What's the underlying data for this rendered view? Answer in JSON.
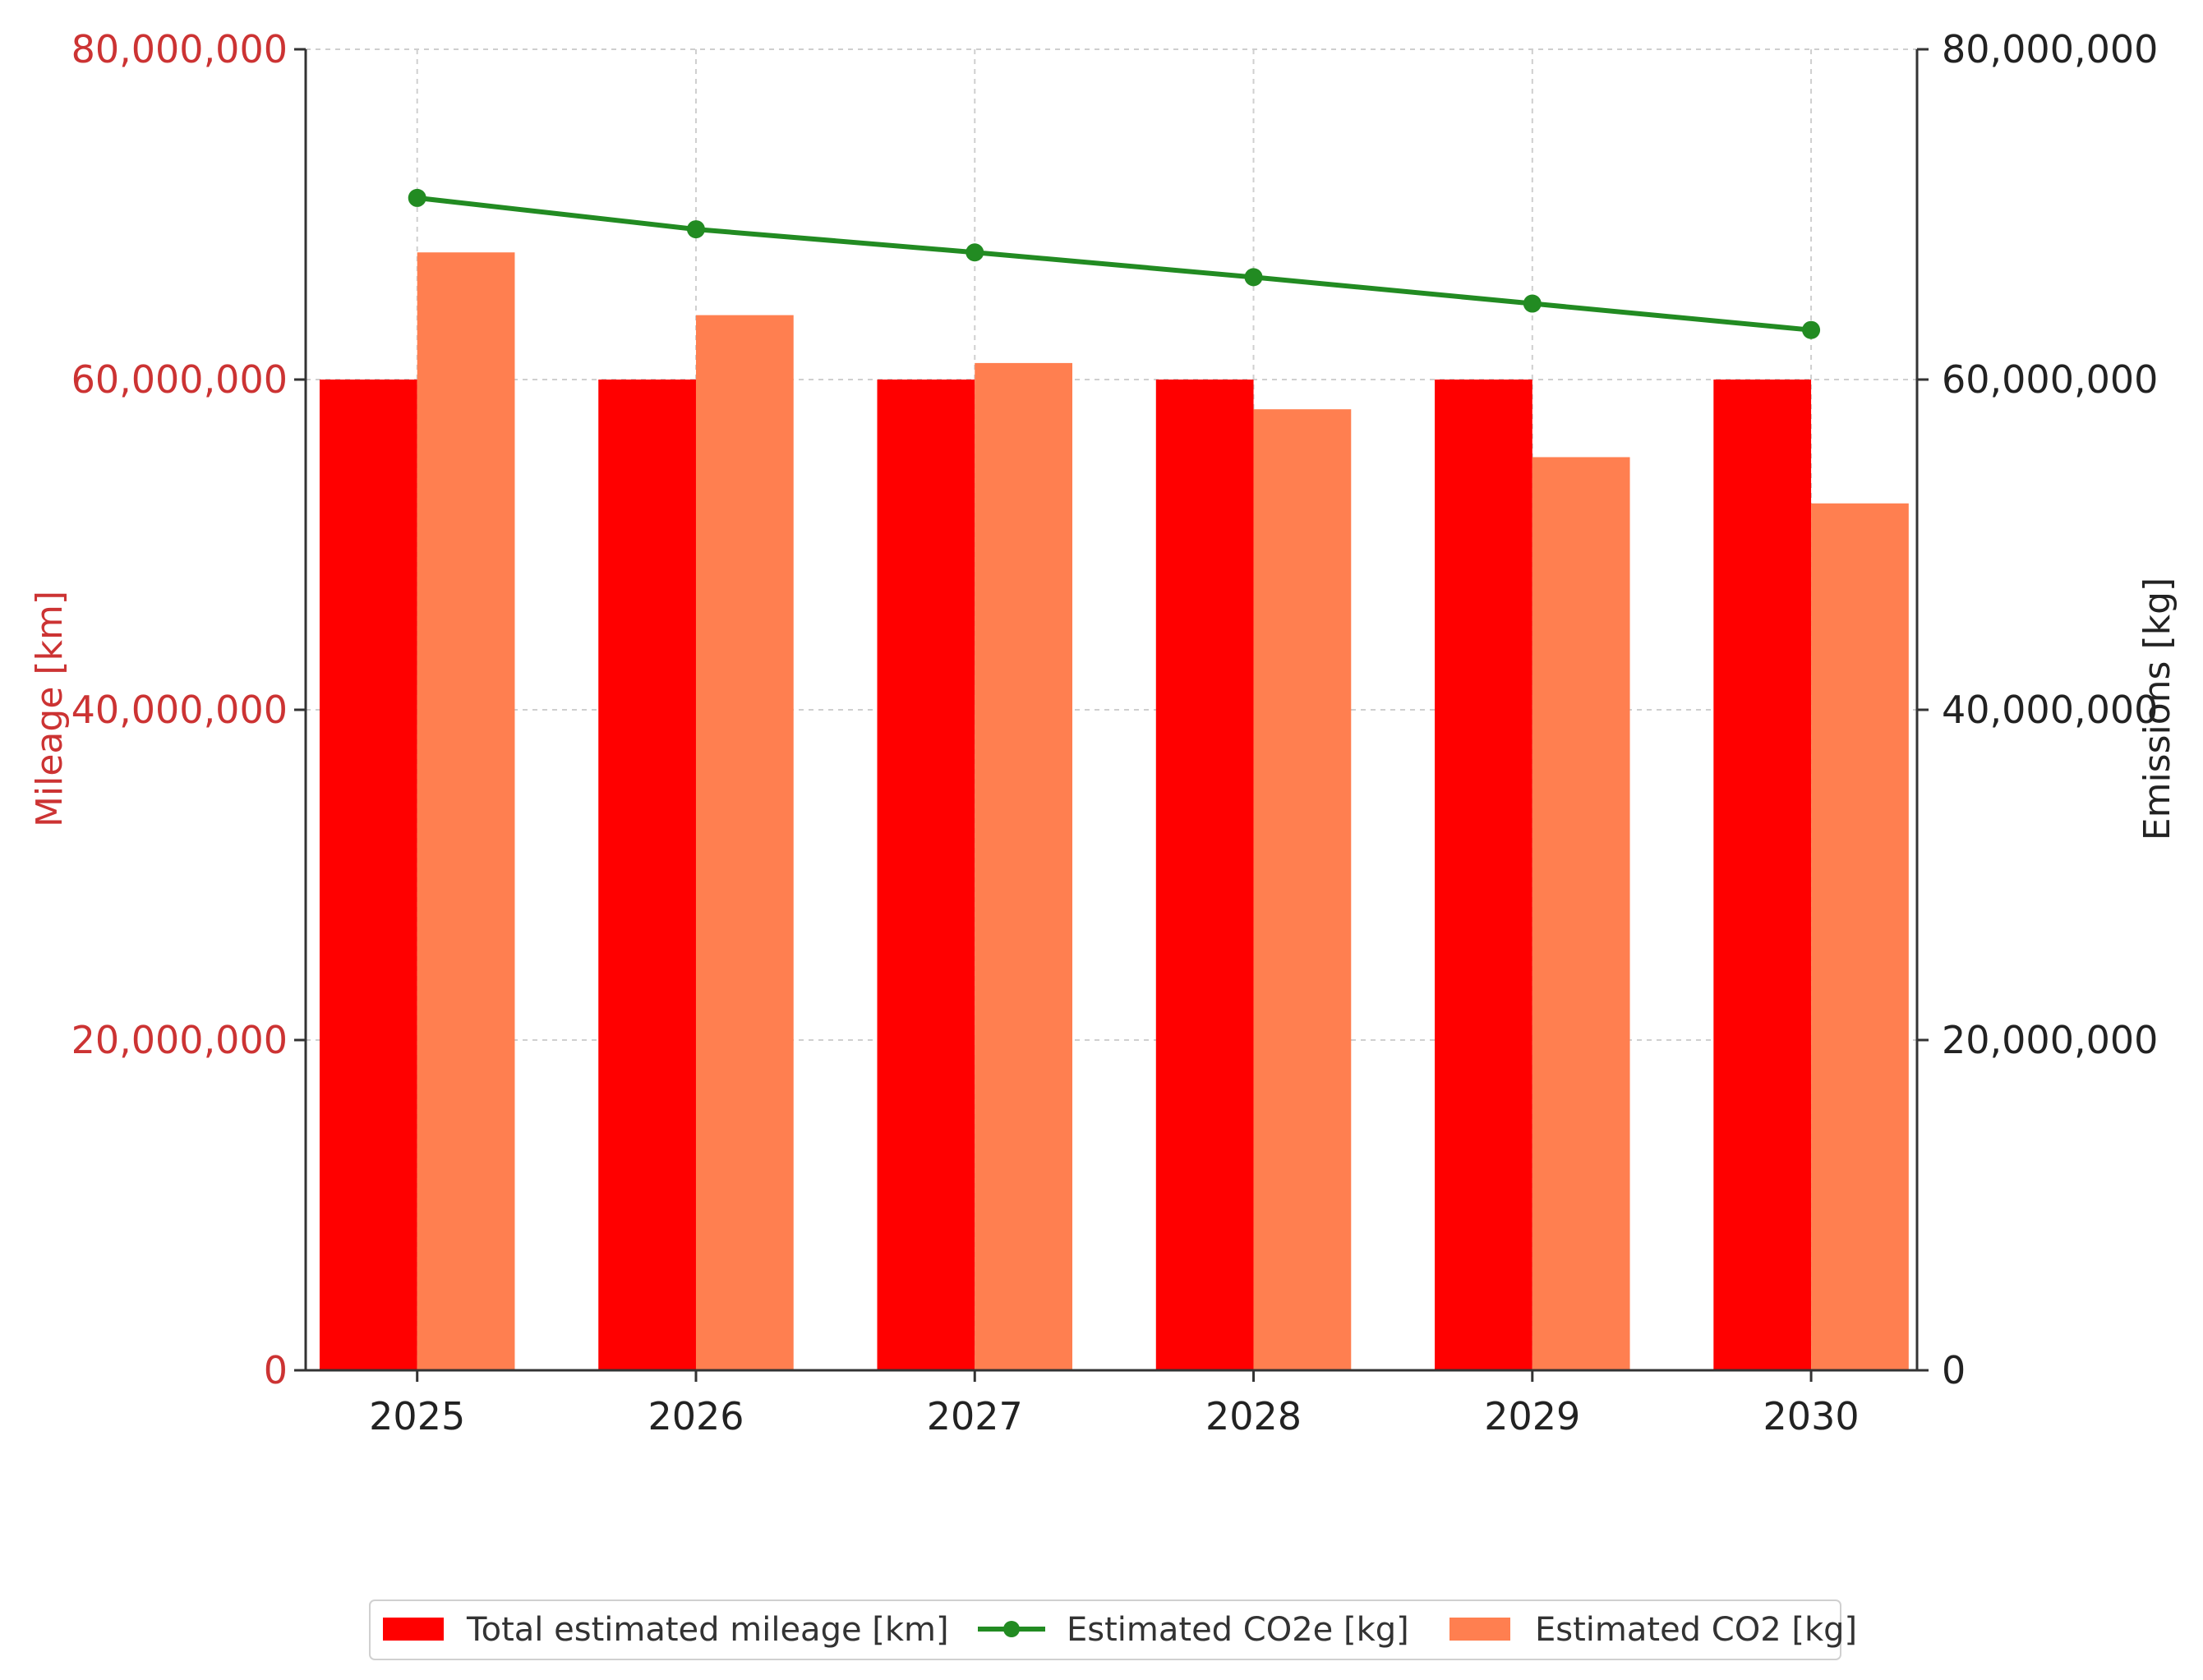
{
  "chart_data": {
    "type": "bar",
    "categories": [
      "2025",
      "2026",
      "2027",
      "2028",
      "2029",
      "2030"
    ],
    "series": [
      {
        "name": "Total estimated mileage [km]",
        "type": "bar",
        "axis": "left",
        "color": "#ff0000",
        "values": [
          60000000,
          60000000,
          60000000,
          60000000,
          60000000,
          60000000
        ]
      },
      {
        "name": "Estimated CO2 [kg]",
        "type": "bar",
        "axis": "right",
        "color": "#ff7f50",
        "values": [
          67700000,
          63900000,
          61000000,
          58200000,
          55300000,
          52500000
        ]
      },
      {
        "name": "Estimated CO2e [kg]",
        "type": "line",
        "axis": "right",
        "color": "#228b22",
        "values": [
          71000000,
          69100000,
          67700000,
          66200000,
          64600000,
          63000000
        ]
      }
    ],
    "y_left": {
      "label": "Mileage [km]",
      "range": [
        0,
        80000000
      ],
      "ticks": [
        0,
        20000000,
        40000000,
        60000000,
        80000000
      ],
      "tick_labels": [
        "0",
        "20,000,000",
        "40,000,000",
        "60,000,000",
        "80,000,000"
      ],
      "color": "#cc3333"
    },
    "y_right": {
      "label": "Emissions [kg]",
      "range": [
        0,
        80000000
      ],
      "ticks": [
        0,
        20000000,
        40000000,
        60000000,
        80000000
      ],
      "tick_labels": [
        "0",
        "20,000,000",
        "40,000,000",
        "60,000,000",
        "80,000,000"
      ],
      "color": "#222222"
    },
    "grid": true,
    "legend": {
      "position": "bottom-center",
      "entries": [
        "Total estimated mileage [km]",
        "Estimated CO2e [kg]",
        "Estimated CO2 [kg]"
      ]
    }
  }
}
